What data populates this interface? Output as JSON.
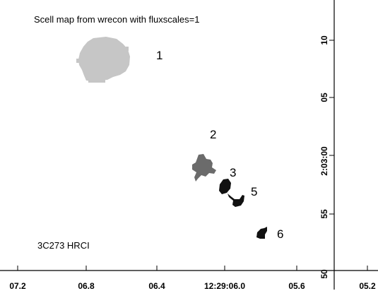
{
  "plot": {
    "title": "Scell map from wrecon with fluxscales=1",
    "source_label": "3C273 HRCI",
    "x_ticks": [
      "07.2",
      "06.8",
      "06.4",
      "12:29:06.0",
      "05.6",
      "05.2"
    ],
    "y_ticks": [
      "10",
      "05",
      "2:03:00",
      "55",
      "50"
    ]
  },
  "regions": [
    {
      "label": "1",
      "color": "#c6c6c6"
    },
    {
      "label": "2",
      "color": "#6b6b6b"
    },
    {
      "label": "3",
      "color": "#111111"
    },
    {
      "label": "5",
      "color": "#111111"
    },
    {
      "label": "6",
      "color": "#111111"
    }
  ]
}
